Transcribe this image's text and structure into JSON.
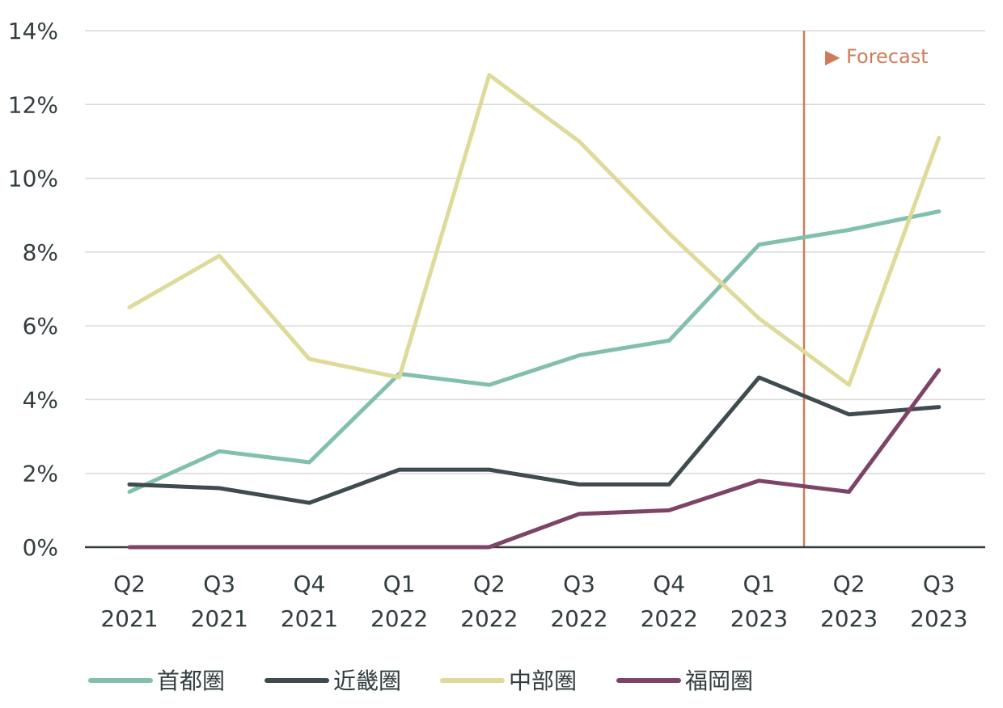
{
  "chart_data": {
    "type": "line",
    "title": "",
    "xlabel": "",
    "ylabel": "",
    "categories": [
      [
        "Q2",
        "2021"
      ],
      [
        "Q3",
        "2021"
      ],
      [
        "Q4",
        "2021"
      ],
      [
        "Q1",
        "2022"
      ],
      [
        "Q2",
        "2022"
      ],
      [
        "Q3",
        "2022"
      ],
      [
        "Q4",
        "2022"
      ],
      [
        "Q1",
        "2023"
      ],
      [
        "Q2",
        "2023"
      ],
      [
        "Q3",
        "2023"
      ]
    ],
    "ylim": [
      0,
      14
    ],
    "yticks": [
      0,
      2,
      4,
      6,
      8,
      10,
      12,
      14
    ],
    "ytick_labels": [
      "0%",
      "2%",
      "4%",
      "6%",
      "8%",
      "10%",
      "12%",
      "14%"
    ],
    "grid": "horizontal",
    "legend_position": "bottom",
    "forecast": {
      "label": "▶ Forecast",
      "position": "between Q1 2023 and Q2 2023",
      "color": "#d07a5a"
    },
    "series": [
      {
        "name": "首都圏",
        "color": "#82bfae",
        "values": [
          1.5,
          2.6,
          2.3,
          4.7,
          4.4,
          5.2,
          5.6,
          8.2,
          8.6,
          9.1
        ]
      },
      {
        "name": "近畿圏",
        "color": "#3f4b4f",
        "values": [
          1.7,
          1.6,
          1.2,
          2.1,
          2.1,
          1.7,
          1.7,
          4.6,
          3.6,
          3.8
        ]
      },
      {
        "name": "中部圏",
        "color": "#dedb9a",
        "values": [
          6.5,
          7.9,
          5.1,
          4.6,
          12.8,
          11.0,
          8.5,
          6.2,
          4.4,
          11.1
        ]
      },
      {
        "name": "福岡圏",
        "color": "#7e4466",
        "values": [
          0.0,
          0.0,
          0.0,
          0.0,
          0.0,
          0.9,
          1.0,
          1.8,
          1.5,
          4.8
        ]
      }
    ]
  }
}
